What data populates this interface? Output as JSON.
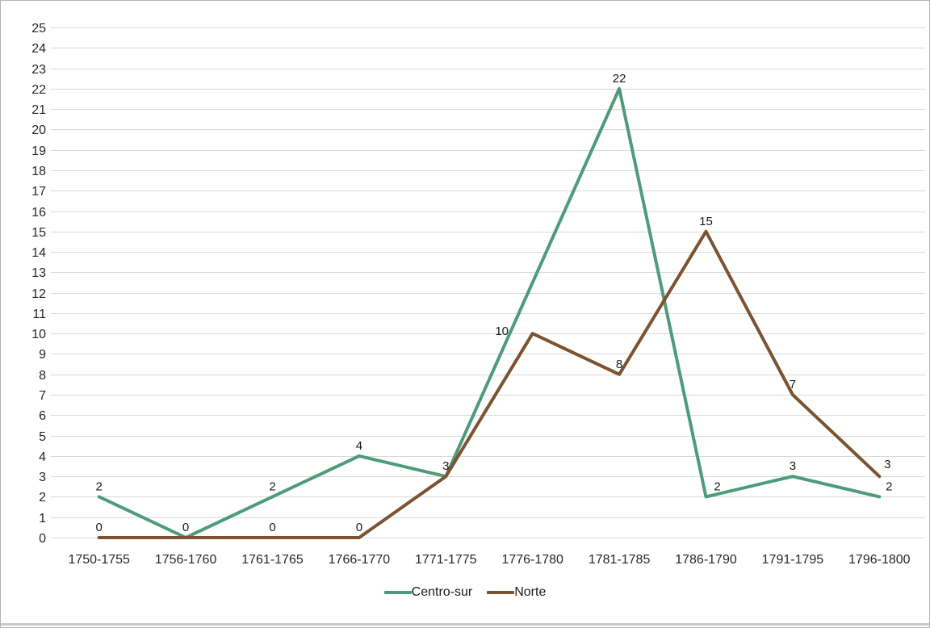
{
  "chart_data": {
    "type": "line",
    "title": "",
    "xlabel": "",
    "ylabel": "",
    "categories": [
      "1750-1755",
      "1756-1760",
      "1761-1765",
      "1766-1770",
      "1771-1775",
      "1776-1780",
      "1781-1785",
      "1786-1790",
      "1791-1795",
      "1796-1800"
    ],
    "series": [
      {
        "name": "Centro-sur",
        "color": "#4e9b7b",
        "values": [
          2,
          0,
          2,
          4,
          3,
          null,
          22,
          2,
          3,
          2
        ],
        "point_labels": [
          "2",
          "0",
          "2",
          "4",
          "3",
          null,
          "22",
          "2",
          "3",
          "2"
        ]
      },
      {
        "name": "Norte",
        "color": "#7c5230",
        "values": [
          0,
          0,
          0,
          0,
          3,
          10,
          8,
          15,
          7,
          3
        ],
        "point_labels": [
          "0",
          null,
          "0",
          "0",
          null,
          "10",
          "8",
          "15",
          "7",
          "3"
        ]
      }
    ],
    "y_axis": {
      "min": 0,
      "max": 25,
      "step": 1,
      "tick_labels": [
        "0",
        "1",
        "2",
        "3",
        "4",
        "5",
        "6",
        "7",
        "8",
        "9",
        "10",
        "11",
        "12",
        "13",
        "14",
        "15",
        "16",
        "17",
        "18",
        "19",
        "20",
        "21",
        "22",
        "23",
        "24",
        "25"
      ]
    },
    "grid": true,
    "legend_position": "bottom",
    "colors": {
      "gridline": "#d9d9d9",
      "axis_text": "#262626",
      "data_label": "#1a1a1a",
      "background": "#ffffff"
    }
  }
}
